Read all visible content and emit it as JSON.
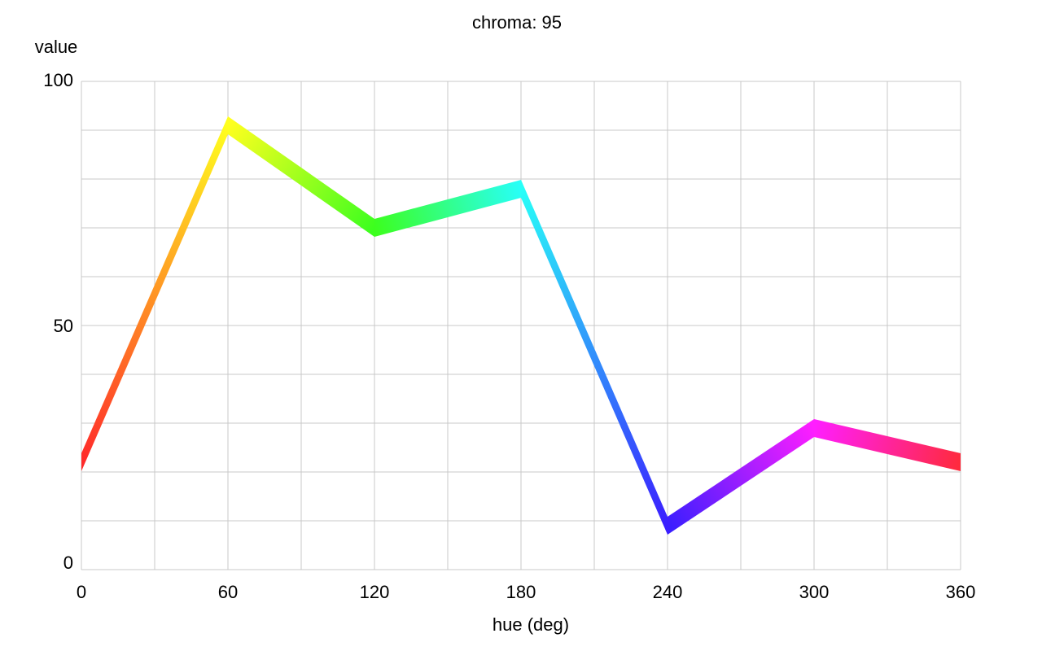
{
  "chart_data": {
    "type": "line",
    "title": "chroma: 95",
    "xlabel": "hue (deg)",
    "ylabel": "value",
    "xlim": [
      0,
      360
    ],
    "ylim": [
      0,
      100
    ],
    "x_ticks": [
      0,
      60,
      120,
      180,
      240,
      300,
      360
    ],
    "y_ticks": [
      0,
      50,
      100
    ],
    "grid": true,
    "series": [
      {
        "x": [
          0,
          60,
          120,
          180,
          240,
          300,
          360
        ],
        "values": [
          22,
          91,
          70,
          78,
          9,
          29,
          22
        ],
        "colors": [
          "#ff2a2a",
          "#ffff1e",
          "#3cff1e",
          "#28fff8",
          "#3a1eff",
          "#ff1eff",
          "#ff2a3c"
        ]
      }
    ]
  }
}
